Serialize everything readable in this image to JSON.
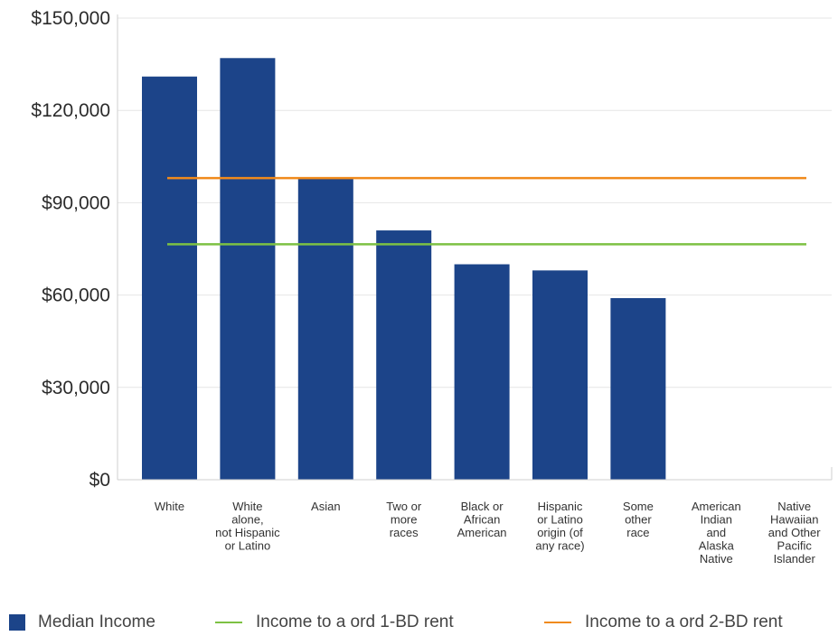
{
  "chart_data": {
    "type": "bar",
    "categories": [
      [
        "White"
      ],
      [
        "White",
        "alone,",
        "not Hispanic",
        "or Latino"
      ],
      [
        "Asian"
      ],
      [
        "Two or",
        "more",
        "races"
      ],
      [
        "Black or",
        "African",
        "American"
      ],
      [
        "Hispanic",
        "or Latino",
        "origin (of",
        "any race)"
      ],
      [
        "Some",
        "other",
        "race"
      ],
      [
        "American",
        "Indian",
        "and",
        "Alaska",
        "Native"
      ],
      [
        "Native",
        "Hawaiian",
        "and Other",
        "Pacific",
        "Islander"
      ]
    ],
    "series": [
      {
        "name": "Median Income",
        "type": "bar",
        "color": "#1c4489",
        "values": [
          131000,
          137000,
          98000,
          81000,
          70000,
          68000,
          59000,
          null,
          null
        ]
      },
      {
        "name": "Income to a ord 1-BD rent",
        "type": "line",
        "color": "#7dc143",
        "value": 76500
      },
      {
        "name": "Income to a ord 2-BD rent",
        "type": "line",
        "color": "#f08a1c",
        "value": 98000
      }
    ],
    "yticks": [
      "$0",
      "$30,000",
      "$60,000",
      "$90,000",
      "$120,000",
      "$150,000"
    ],
    "ytick_values": [
      0,
      30000,
      60000,
      90000,
      120000,
      150000
    ],
    "ylim": [
      0,
      150000
    ],
    "grid": true,
    "legend_position": "bottom"
  }
}
